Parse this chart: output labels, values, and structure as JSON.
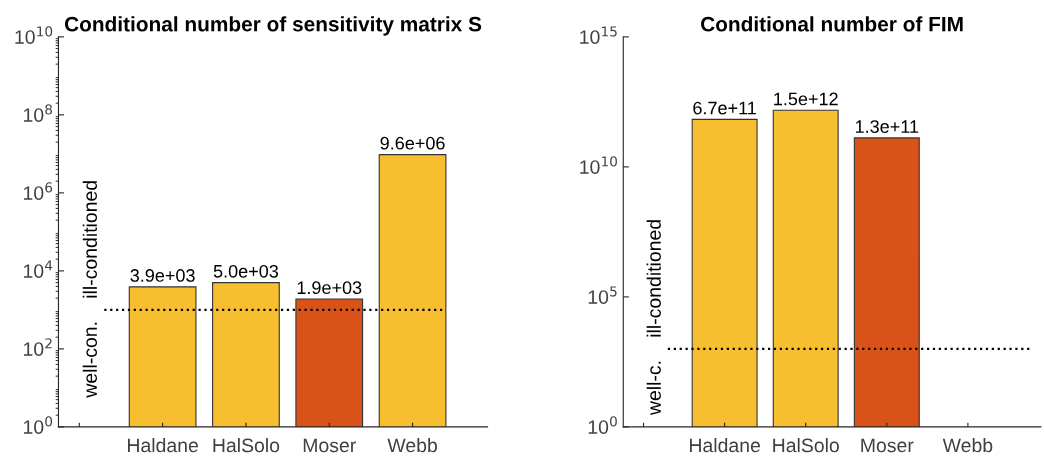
{
  "chart_data": [
    {
      "type": "bar",
      "title": "Conditional number of sensitivity matrix S",
      "categories": [
        null,
        "Haldane",
        "HalSolo",
        "Moser",
        "Webb"
      ],
      "values": [
        null,
        3900,
        5000,
        1900,
        9600000
      ],
      "colors": [
        "#f7be30",
        "#f7be30",
        "#f7be30",
        "#d95319",
        "#f7be30"
      ],
      "value_labels": [
        null,
        "3.9e+03",
        "5.0e+03",
        "1.9e+03",
        "9.6e+06"
      ],
      "log": true,
      "ylim": [
        1,
        10000000000
      ],
      "yticks": [
        {
          "value": 1,
          "label": "10$^{0}$"
        },
        {
          "value": 100,
          "label": "10$^{2}$"
        },
        {
          "value": 10000,
          "label": "10$^{4}$"
        },
        {
          "value": 1000000,
          "label": "10$^{6}$"
        },
        {
          "value": 100000000,
          "label": "10$^{8}$"
        },
        {
          "value": 10000000000,
          "label": "10$^{10}$"
        }
      ],
      "ref_lines": [
        {
          "axis": "y",
          "value": 1000,
          "label": "ill-conditioned",
          "color": "#000000",
          "line_style": "dotted"
        }
      ],
      "annotations": [
        "well-con."
      ],
      "grid": false
    },
    {
      "type": "bar",
      "title": "Conditional number of FIM",
      "categories": [
        null,
        "Haldane",
        "HalSolo",
        "Moser",
        "Webb"
      ],
      "values": [
        null,
        670000000000,
        1500000000000,
        130000000000,
        null
      ],
      "colors": [
        "#f7be30",
        "#f7be30",
        "#f7be30",
        "#d95319",
        "#f7be30"
      ],
      "value_labels": [
        null,
        "6.7e+11",
        "1.5e+12",
        "1.3e+11",
        null
      ],
      "log": true,
      "ylim": [
        1,
        1000000000000000
      ],
      "yticks": [
        {
          "value": 1,
          "label": "10$^{0}$"
        },
        {
          "value": 100000,
          "label": "10$^{5}$"
        },
        {
          "value": 10000000000,
          "label": "10$^{10}$"
        },
        {
          "value": 1000000000000000,
          "label": "10$^{15}$"
        }
      ],
      "ref_lines": [
        {
          "axis": "y",
          "value": 1000,
          "label": "ill-conditioned",
          "color": "#000000",
          "line_style": "dotted"
        }
      ],
      "annotations": [
        "well-c."
      ],
      "grid": false
    }
  ]
}
